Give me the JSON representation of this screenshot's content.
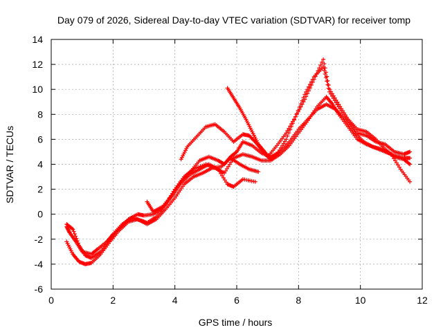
{
  "chart_data": {
    "type": "scatter",
    "title": "Day 079 of 2026, Sidereal Day-to-day VTEC variation (SDTVAR) for receiver tomp",
    "xlabel": "GPS time / hours",
    "ylabel": "SDTVAR / TECUs",
    "xlim": [
      0,
      12
    ],
    "ylim": [
      -6,
      14
    ],
    "xticks": [
      0,
      2,
      4,
      6,
      8,
      10,
      12
    ],
    "yticks": [
      -6,
      -4,
      -2,
      0,
      2,
      4,
      6,
      8,
      10,
      12,
      14
    ],
    "grid": true,
    "marker": "+",
    "color": "#ff0000",
    "series": [
      {
        "x": [
          0.5,
          0.6,
          0.8,
          1.0,
          1.3,
          1.5,
          1.8,
          2.0,
          2.3,
          2.6,
          2.9,
          3.1,
          3.4,
          3.7,
          4.0,
          4.3,
          4.6,
          5.0,
          5.3,
          5.6,
          5.9,
          6.2,
          6.5,
          6.8,
          7.1,
          7.4,
          7.7,
          8.0,
          8.3,
          8.6,
          8.9,
          9.1,
          9.3,
          9.6,
          9.9,
          10.2,
          10.5,
          10.8,
          11.1,
          11.4,
          11.6
        ],
        "y": [
          -1.0,
          -1.5,
          -2.2,
          -3.0,
          -3.2,
          -2.8,
          -2.2,
          -1.6,
          -0.8,
          -0.3,
          -0.5,
          -0.7,
          -0.2,
          0.8,
          2.0,
          3.0,
          3.6,
          4.0,
          3.7,
          3.3,
          4.5,
          4.8,
          4.6,
          4.3,
          4.3,
          4.8,
          5.5,
          6.5,
          7.5,
          8.6,
          9.4,
          8.8,
          8.0,
          7.0,
          6.0,
          5.6,
          5.3,
          5.0,
          4.7,
          4.5,
          4.5
        ]
      },
      {
        "x": [
          0.5,
          0.7,
          0.9,
          1.1,
          1.3,
          1.6,
          1.9,
          2.2,
          2.5,
          2.8,
          3.0,
          3.3,
          3.6,
          3.9,
          4.2,
          4.5,
          4.8,
          5.1,
          5.4,
          5.7,
          5.9,
          6.2,
          6.6
        ],
        "y": [
          -0.8,
          -1.2,
          -2.5,
          -3.3,
          -3.5,
          -3.0,
          -2.0,
          -1.2,
          -0.4,
          0.0,
          -0.1,
          0.0,
          0.5,
          1.4,
          2.5,
          3.2,
          3.6,
          4.0,
          3.6,
          2.4,
          2.2,
          2.8,
          2.6
        ]
      },
      {
        "x": [
          0.5,
          0.7,
          0.9,
          1.1,
          1.3,
          1.6,
          1.9,
          2.2,
          2.5,
          2.8,
          3.1,
          3.4,
          3.7,
          4.0,
          4.3,
          4.6,
          4.9,
          5.2,
          5.5,
          5.8,
          6.1,
          6.4,
          6.7
        ],
        "y": [
          -2.2,
          -3.2,
          -3.8,
          -4.0,
          -3.9,
          -3.2,
          -2.2,
          -1.3,
          -0.6,
          -0.4,
          -0.8,
          -0.4,
          0.4,
          1.3,
          2.4,
          3.0,
          3.3,
          3.7,
          3.8,
          4.5,
          4.0,
          3.6,
          3.4
        ]
      },
      {
        "x": [
          3.1,
          3.3,
          3.6,
          3.9,
          4.2,
          4.5,
          4.8,
          5.1,
          5.4,
          5.6,
          5.8,
          6.0,
          6.2,
          6.5,
          6.8,
          7.1,
          7.4,
          7.7,
          8.0,
          8.3,
          8.6,
          8.9,
          9.2,
          9.5,
          9.8,
          10.1,
          10.4,
          10.7,
          11.0,
          11.3,
          11.6
        ],
        "y": [
          1.0,
          0.2,
          0.6,
          1.5,
          2.6,
          3.4,
          4.3,
          4.6,
          4.3,
          4.0,
          4.6,
          5.0,
          5.8,
          5.5,
          4.9,
          4.6,
          5.0,
          5.8,
          6.8,
          7.6,
          8.4,
          8.8,
          8.4,
          7.6,
          6.6,
          5.8,
          5.4,
          5.2,
          4.8,
          3.6,
          2.6
        ]
      },
      {
        "x": [
          4.2,
          4.4,
          4.7,
          5.0,
          5.3,
          5.6,
          5.9,
          6.2,
          6.4,
          6.6,
          6.8,
          7.0,
          7.3,
          7.6,
          7.9,
          8.2,
          8.5,
          8.8,
          9.0,
          9.3,
          9.6,
          9.9,
          10.2,
          10.5,
          10.8,
          11.1,
          11.4,
          11.6
        ],
        "y": [
          4.4,
          5.4,
          6.2,
          7.0,
          7.2,
          6.6,
          5.8,
          6.4,
          6.3,
          5.8,
          5.2,
          4.6,
          5.5,
          6.5,
          7.8,
          9.2,
          10.8,
          12.4,
          10.0,
          8.8,
          7.6,
          6.8,
          6.6,
          6.0,
          5.2,
          4.6,
          4.4,
          4.0
        ]
      },
      {
        "x": [
          5.7,
          5.9,
          6.1,
          6.3,
          6.5,
          6.7,
          6.9,
          7.1,
          7.3,
          7.6,
          7.9,
          8.2,
          8.5,
          8.8,
          9.0,
          9.3,
          9.6,
          9.9,
          10.2,
          10.5,
          10.8,
          11.1,
          11.4,
          11.6
        ],
        "y": [
          10.1,
          9.3,
          8.5,
          7.6,
          6.6,
          5.6,
          5.0,
          4.4,
          4.8,
          6.0,
          7.8,
          9.6,
          11.0,
          11.8,
          9.8,
          8.6,
          7.5,
          6.5,
          6.3,
          5.8,
          5.6,
          5.0,
          4.8,
          5.0
        ]
      }
    ]
  }
}
